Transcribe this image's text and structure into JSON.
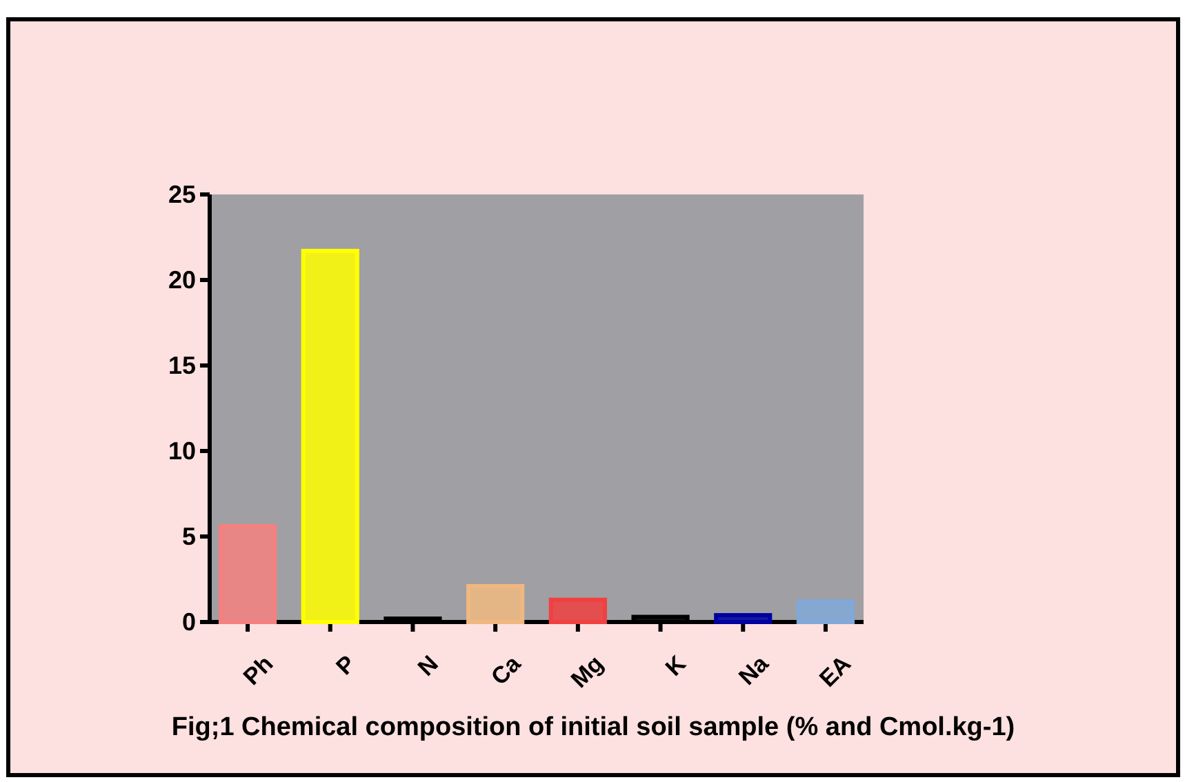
{
  "chart_data": {
    "type": "bar",
    "title": "Fig;1 Chemical composition of initial soil sample (% and Cmol.kg-1)",
    "categories": [
      "Ph",
      "P",
      "N",
      "Ca",
      "Mg",
      "K",
      "Na",
      "EA"
    ],
    "values": [
      5.6,
      21.7,
      0.2,
      2.1,
      1.3,
      0.3,
      0.4,
      1.2
    ],
    "colors": [
      "#f48080",
      "#ffff00",
      "#000000",
      "#f0b880",
      "#f04040",
      "#000000",
      "#0000a0",
      "#80a8d8"
    ],
    "ylim": [
      0,
      25
    ],
    "yticks": [
      0,
      5,
      10,
      15,
      20,
      25
    ],
    "grid": false
  }
}
